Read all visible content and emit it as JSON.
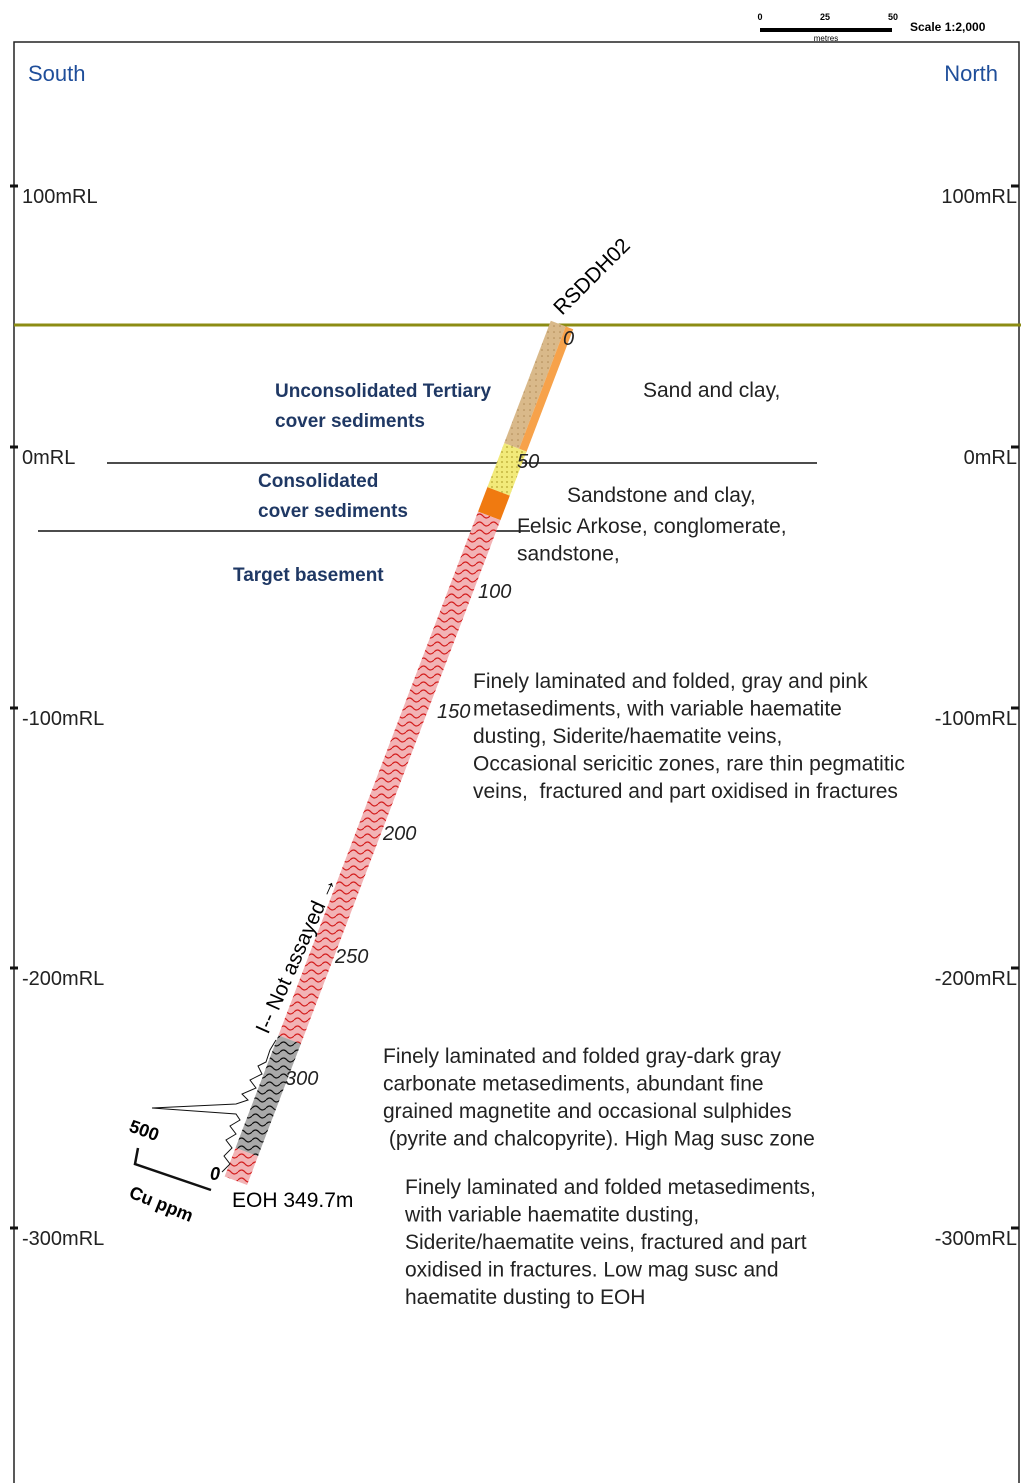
{
  "scale_bar": {
    "ticks": [
      "0",
      "25",
      "50"
    ],
    "unit": "metres",
    "label": "Scale 1:2,000"
  },
  "directions": {
    "left": "South",
    "right": "North"
  },
  "rl_labels": {
    "left": [
      "100mRL",
      "0mRL",
      "-100mRL",
      "-200mRL",
      "-300mRL"
    ],
    "right": [
      "100mRL",
      "0mRL",
      "-100mRL",
      "-200mRL",
      "-300mRL"
    ]
  },
  "hole": {
    "name": "RSDDH02",
    "depth_labels": [
      "0",
      "50",
      "100",
      "150",
      "200",
      "250",
      "300"
    ],
    "end": "EOH 349.7m",
    "note": "I-- Not assayed →"
  },
  "zones": [
    {
      "lines": [
        "Unconsolidated Tertiary",
        "cover sediments"
      ]
    },
    {
      "lines": [
        "Consolidated",
        "cover sediments"
      ]
    },
    {
      "lines": [
        "Target basement"
      ]
    }
  ],
  "lithology": [
    {
      "lines": [
        "Sand and clay,"
      ]
    },
    {
      "lines": [
        "Sandstone and clay,"
      ]
    },
    {
      "lines": [
        "Felsic Arkose, conglomerate,",
        "sandstone,"
      ]
    },
    {
      "lines": [
        "Finely laminated and folded, gray and pink",
        "metasediments, with variable haematite",
        "dusting, Siderite/haematite veins,",
        "Occasional sericitic zones, rare thin pegmatitic",
        "veins,  fractured and part oxidised in fractures"
      ]
    },
    {
      "lines": [
        "Finely laminated and folded gray-dark gray",
        "carbonate metasediments, abundant fine",
        "grained magnetite and occasional sulphides",
        " (pyrite and chalcopyrite). High Mag susc zone"
      ]
    },
    {
      "lines": [
        "Finely laminated and folded metasediments,",
        "with variable haematite dusting,",
        "Siderite/haematite veins, fractured and part",
        "oxidised in fractures. Low mag susc and",
        "haematite dusting to EOH"
      ]
    }
  ],
  "cu_plot": {
    "scale": "500",
    "zero": "0",
    "axis": "Cu ppm"
  }
}
